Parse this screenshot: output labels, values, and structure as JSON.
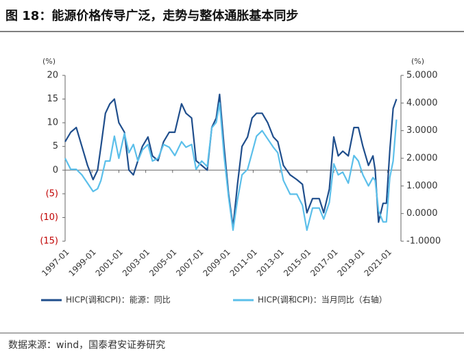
{
  "chart_data": {
    "type": "line",
    "title": "图 18：能源价格传导广泛，走势与整体通胀基本同步",
    "y_unit": "(%)",
    "y2_unit": "(%)",
    "source": "数据来源：wind，国泰君安证券研究",
    "x": [
      "1997-01",
      "1997-06",
      "1997-11",
      "1998-04",
      "1998-09",
      "1999-02",
      "1999-06",
      "1999-09",
      "2000-01",
      "2000-05",
      "2000-09",
      "2001-01",
      "2001-06",
      "2001-10",
      "2002-02",
      "2002-06",
      "2002-10",
      "2003-03",
      "2003-07",
      "2003-12",
      "2004-05",
      "2004-10",
      "2005-03",
      "2005-09",
      "2006-01",
      "2006-06",
      "2006-10",
      "2007-03",
      "2007-08",
      "2007-12",
      "2008-04",
      "2008-07",
      "2008-11",
      "2009-03",
      "2009-07",
      "2009-11",
      "2010-03",
      "2010-08",
      "2010-12",
      "2011-04",
      "2011-09",
      "2012-02",
      "2012-07",
      "2012-11",
      "2013-04",
      "2013-10",
      "2014-04",
      "2014-09",
      "2015-01",
      "2015-06",
      "2015-12",
      "2016-04",
      "2016-09",
      "2017-01",
      "2017-05",
      "2017-09",
      "2018-02",
      "2018-07",
      "2018-11",
      "2019-03",
      "2019-08",
      "2019-12",
      "2020-02",
      "2020-05",
      "2020-09",
      "2020-12",
      "2021-03",
      "2021-06",
      "2021-09"
    ],
    "xlim": [
      "1997-01",
      "2021-12"
    ],
    "xticks": [
      "1997-01",
      "1999-01",
      "2001-01",
      "2003-01",
      "2005-01",
      "2007-01",
      "2009-01",
      "2011-01",
      "2013-01",
      "2015-01",
      "2017-01",
      "2019-01",
      "2021-01"
    ],
    "series": [
      {
        "name": "HICP(调和CPI)：能源：同比",
        "color": "#1f4e8c",
        "axis": "y",
        "values": [
          6,
          8,
          9,
          5,
          1,
          -2,
          0,
          5,
          12,
          14,
          15,
          10,
          8,
          0,
          -1,
          2,
          5,
          7,
          3,
          2,
          6,
          8,
          8,
          14,
          12,
          11,
          2,
          1,
          0,
          9,
          11,
          16,
          5,
          -5,
          -12,
          -3,
          5,
          7,
          11,
          12,
          12,
          10,
          7,
          6,
          1,
          -1,
          -2,
          -3,
          -9,
          -6,
          -6,
          -9,
          -4,
          7,
          3,
          4,
          3,
          9,
          9,
          5,
          1,
          3,
          0,
          -11,
          -7,
          -7,
          4,
          13,
          15
        ]
      },
      {
        "name": "HICP(调和CPI)：当月同比（右轴）",
        "color": "#5bbfea",
        "axis": "y2",
        "values": [
          2.0,
          1.6,
          1.6,
          1.4,
          1.1,
          0.8,
          0.9,
          1.2,
          1.9,
          1.9,
          2.8,
          2.0,
          2.9,
          2.2,
          2.5,
          1.9,
          2.3,
          2.5,
          1.9,
          2.0,
          2.5,
          2.4,
          2.1,
          2.6,
          2.4,
          2.5,
          1.6,
          1.9,
          1.7,
          3.1,
          3.3,
          4.0,
          2.1,
          0.6,
          -0.6,
          0.5,
          1.4,
          1.6,
          2.2,
          2.8,
          3.0,
          2.7,
          2.4,
          2.2,
          1.2,
          0.7,
          0.7,
          0.3,
          -0.6,
          0.2,
          0.2,
          -0.2,
          0.4,
          1.8,
          1.4,
          1.5,
          1.1,
          2.1,
          1.9,
          1.4,
          1.0,
          1.3,
          1.2,
          0.1,
          -0.3,
          -0.3,
          1.3,
          1.9,
          3.4
        ]
      }
    ],
    "ylim": [
      -15,
      20
    ],
    "yticks": [
      20,
      15,
      10,
      5,
      0,
      {
        "value": -5,
        "label": "(5)"
      },
      {
        "value": -10,
        "label": "(10)"
      },
      {
        "value": -15,
        "label": "(15)"
      }
    ],
    "y2lim": [
      -1,
      5
    ],
    "y2ticks": [
      {
        "value": 5,
        "label": "5.0000"
      },
      {
        "value": 4,
        "label": "4.0000"
      },
      {
        "value": 3,
        "label": "3.0000"
      },
      {
        "value": 2,
        "label": "2.0000"
      },
      {
        "value": 1,
        "label": "1.0000"
      },
      {
        "value": 0,
        "label": "0.0000"
      },
      {
        "value": -1,
        "label": "-1.0000"
      }
    ],
    "legend": "bottom"
  }
}
